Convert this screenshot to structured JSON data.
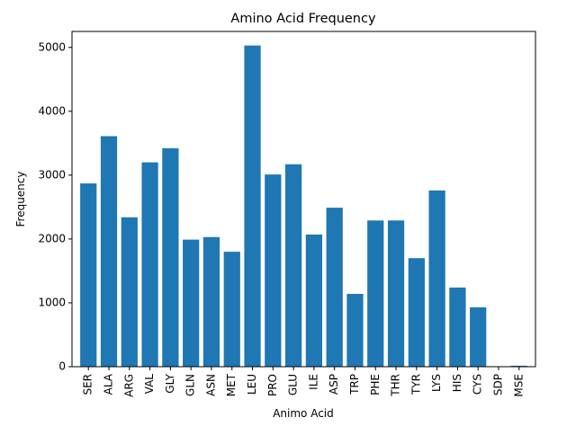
{
  "chart_data": {
    "type": "bar",
    "title": "Amino Acid Frequency",
    "xlabel": "Animo Acid",
    "ylabel": "Frequency",
    "ylim": [
      0,
      5250
    ],
    "yticks": [
      0,
      1000,
      2000,
      3000,
      4000,
      5000
    ],
    "bar_color": "#1f77b4",
    "grid": false,
    "categories": [
      "SER",
      "ALA",
      "ARG",
      "VAL",
      "GLY",
      "GLN",
      "ASN",
      "MET",
      "LEU",
      "PRO",
      "GLU",
      "ILE",
      "ASP",
      "TRP",
      "PHE",
      "THR",
      "TYR",
      "LYS",
      "HIS",
      "CYS",
      "SDP",
      "MSE"
    ],
    "values": [
      2870,
      3610,
      2340,
      3200,
      3420,
      1990,
      2030,
      1800,
      5030,
      3010,
      3170,
      2070,
      2490,
      1140,
      2290,
      2290,
      1700,
      2760,
      1240,
      930,
      2,
      15
    ]
  }
}
